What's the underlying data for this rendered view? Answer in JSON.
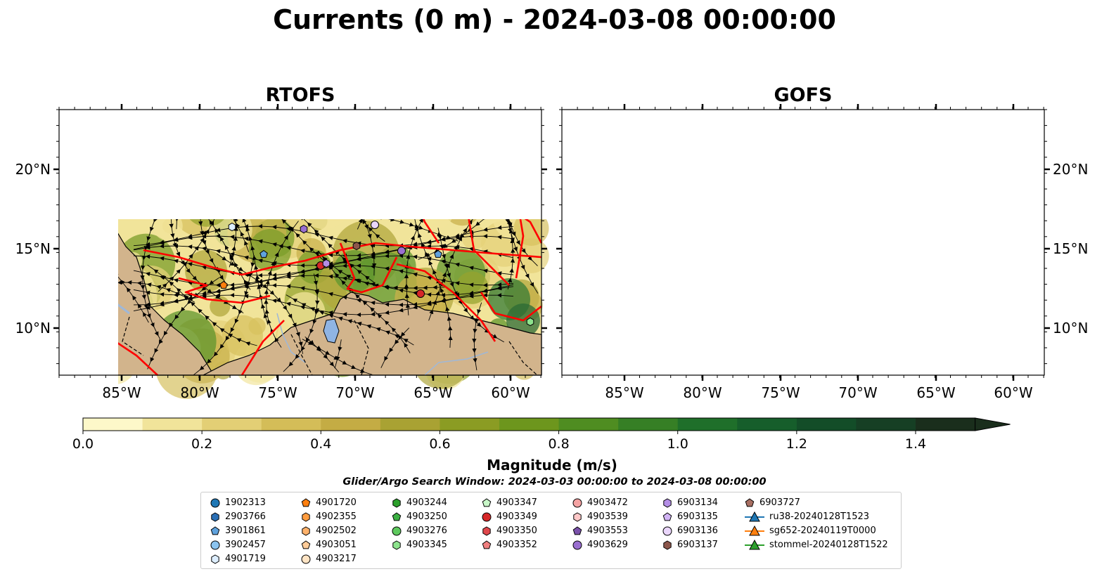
{
  "title": "Currents (0 m) - 2024-03-08 00:00:00",
  "panels": [
    {
      "title": "RTOFS"
    },
    {
      "title": "GOFS"
    }
  ],
  "axes": {
    "x_ticks": [
      "85°W",
      "80°W",
      "75°W",
      "70°W",
      "65°W",
      "60°W"
    ],
    "y_ticks": [
      "20°N",
      "15°N",
      "10°N"
    ]
  },
  "colorbar": {
    "label": "Magnitude (m/s)",
    "ticks": [
      "0.0",
      "0.2",
      "0.4",
      "0.6",
      "0.8",
      "1.0",
      "1.2",
      "1.4"
    ],
    "range": [
      0,
      1.5
    ],
    "extend": "max",
    "colors": [
      "#fdf8c9",
      "#f1e49a",
      "#e3cf75",
      "#d4bd58",
      "#c4ac44",
      "#a9a233",
      "#8b9c23",
      "#6d961d",
      "#4f8d21",
      "#367f25",
      "#1f6f2a",
      "#165e2b",
      "#134d28",
      "#163f24",
      "#1a2e1c"
    ]
  },
  "colors": {
    "land": "#d2b48c",
    "lake": "#8fb4e3",
    "river": "#9fb8d8",
    "boundary": "#ff0000",
    "streamline": "#000000"
  },
  "search_window": "Glider/Argo Search Window: 2024-03-03 00:00:00 to 2024-03-08 00:00:00",
  "legend": [
    {
      "label": "1902313",
      "marker": "circle",
      "color": "#1f77b4"
    },
    {
      "label": "2903766",
      "marker": "hexagon",
      "color": "#2a6fb5"
    },
    {
      "label": "3901861",
      "marker": "pentagon",
      "color": "#5fa2dd"
    },
    {
      "label": "3902457",
      "marker": "circle",
      "color": "#8cc4ef"
    },
    {
      "label": "4901719",
      "marker": "hexagon",
      "color": "#ddeeff"
    },
    {
      "label": "4901720",
      "marker": "pentagon",
      "color": "#ff7f0e"
    },
    {
      "label": "4902355",
      "marker": "hexagon",
      "color": "#ff9c3f"
    },
    {
      "label": "4902502",
      "marker": "hexagon",
      "color": "#ffb26b"
    },
    {
      "label": "4903051",
      "marker": "pentagon",
      "color": "#ffcc99"
    },
    {
      "label": "4903217",
      "marker": "circle",
      "color": "#ffe4c4"
    },
    {
      "label": "4903244",
      "marker": "hexagon",
      "color": "#2ca02c"
    },
    {
      "label": "4903250",
      "marker": "pentagon",
      "color": "#3cb043"
    },
    {
      "label": "4903276",
      "marker": "circle",
      "color": "#5ec95e"
    },
    {
      "label": "4903345",
      "marker": "hexagon",
      "color": "#8de38d"
    },
    {
      "label": "4903347",
      "marker": "pentagon",
      "color": "#c8f7c8"
    },
    {
      "label": "4903349",
      "marker": "circle",
      "color": "#d62728"
    },
    {
      "label": "4903350",
      "marker": "hexagon",
      "color": "#e0474c"
    },
    {
      "label": "4903352",
      "marker": "pentagon",
      "color": "#f07f7f"
    },
    {
      "label": "4903472",
      "marker": "circle",
      "color": "#f4a3a3"
    },
    {
      "label": "4903539",
      "marker": "hexagon",
      "color": "#ffc8c8"
    },
    {
      "label": "4903553",
      "marker": "pentagon",
      "color": "#7b52ab"
    },
    {
      "label": "4903629",
      "marker": "circle",
      "color": "#9a6fd0"
    },
    {
      "label": "6903134",
      "marker": "hexagon",
      "color": "#b48ee6"
    },
    {
      "label": "6903135",
      "marker": "pentagon",
      "color": "#d2b4f5"
    },
    {
      "label": "6903136",
      "marker": "circle",
      "color": "#ead6fb"
    },
    {
      "label": "6903137",
      "marker": "hexagon",
      "color": "#8c564b"
    },
    {
      "label": "6903727",
      "marker": "pentagon",
      "color": "#a86f62"
    },
    {
      "label": "ru38-20240128T1523",
      "marker": "triangle-line",
      "color": "#1f77b4"
    },
    {
      "label": "sg652-20240119T0000",
      "marker": "triangle-line",
      "color": "#ff7f0e"
    },
    {
      "label": "stommel-20240128T1522",
      "marker": "triangle-line",
      "color": "#2ca02c"
    }
  ]
}
